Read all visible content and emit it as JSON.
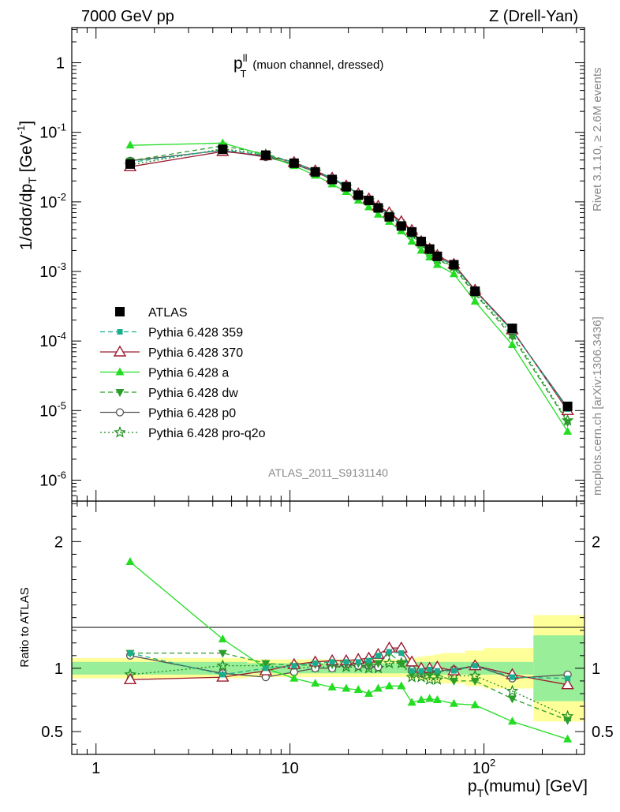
{
  "header": {
    "left": "7000 GeV pp",
    "right": "Z (Drell-Yan)"
  },
  "side_text": {
    "rivet": "Rivet 3.1.10, ≥ 2.6M events",
    "mcplots": "mcplots.cern.ch [arXiv:1306.3436]"
  },
  "chart_data": [
    {
      "type": "line",
      "panel": "main",
      "title_main": "p",
      "title_sup": "ll",
      "title_sub": "T",
      "title_rest": "(muon channel, dressed)",
      "ylabel": "1/σdσ/dp_T [GeV^-1]",
      "ylabel_parts": {
        "a": "1/σdσ/dp",
        "sub": "T",
        "b": "[GeV",
        "sup": "-1",
        "c": "]"
      },
      "xscale": "log",
      "yscale": "log",
      "xlim": [
        0.75,
        330
      ],
      "ylim": [
        5e-07,
        3.2
      ],
      "ytick_labels": [
        {
          "base": "10",
          "exp": "-6"
        },
        {
          "base": "10",
          "exp": "-5"
        },
        {
          "base": "10",
          "exp": "-4"
        },
        {
          "base": "10",
          "exp": "-3"
        },
        {
          "base": "10",
          "exp": "-2"
        },
        {
          "base": "10",
          "exp": "-1"
        },
        {
          "base": "1",
          "exp": ""
        }
      ],
      "watermark": "ATLAS_2011_S9131140",
      "x": [
        1.5,
        4.5,
        7.5,
        10.5,
        13.5,
        16.5,
        19.5,
        22.5,
        25.5,
        28.5,
        32.5,
        37.5,
        42.5,
        47.5,
        52.5,
        57.5,
        70,
        90,
        140,
        270
      ],
      "series": [
        {
          "name": "ATLAS",
          "style": "data",
          "color": "#000000",
          "values": [
            0.035,
            0.057,
            0.047,
            0.036,
            0.027,
            0.021,
            0.0165,
            0.0125,
            0.0105,
            0.0082,
            0.0061,
            0.0045,
            0.0037,
            0.0027,
            0.0021,
            0.00165,
            0.00125,
            0.00052,
            0.000152,
            1.15e-05
          ]
        },
        {
          "name": "Pythia 6.428 359",
          "style": "dashed",
          "marker": "square",
          "color": "#1aae8d",
          "values": [
            0.037,
            0.056,
            0.047,
            0.037,
            0.028,
            0.022,
            0.017,
            0.013,
            0.011,
            0.0085,
            0.0065,
            0.0048,
            0.0036,
            0.0026,
            0.0021,
            0.0016,
            0.00122,
            0.00053,
            0.00014,
            1.05e-05
          ]
        },
        {
          "name": "Pythia 6.428 370",
          "style": "solid",
          "marker": "triangle-open",
          "color": "#9b1c31",
          "values": [
            0.032,
            0.053,
            0.046,
            0.037,
            0.028,
            0.022,
            0.017,
            0.0131,
            0.0111,
            0.0087,
            0.007,
            0.0052,
            0.0039,
            0.0027,
            0.0021,
            0.0017,
            0.00127,
            0.00054,
            0.000145,
            1e-05
          ]
        },
        {
          "name": "Pythia 6.428 a",
          "style": "solid",
          "marker": "triangle",
          "color": "#22dd22",
          "values": [
            0.065,
            0.07,
            0.047,
            0.033,
            0.024,
            0.018,
            0.014,
            0.0105,
            0.0084,
            0.0066,
            0.0052,
            0.0038,
            0.0027,
            0.002,
            0.0016,
            0.00125,
            0.00092,
            0.00037,
            8.8e-05,
            5e-06
          ]
        },
        {
          "name": "Pythia 6.428 dw",
          "style": "dashed",
          "marker": "triangle-down",
          "color": "#2a9d2a",
          "values": [
            0.039,
            0.064,
            0.049,
            0.037,
            0.028,
            0.022,
            0.017,
            0.013,
            0.0108,
            0.0085,
            0.0068,
            0.0047,
            0.0035,
            0.0026,
            0.002,
            0.0015,
            0.00112,
            0.00047,
            0.000116,
            6.8e-06
          ]
        },
        {
          "name": "Pythia 6.428 p0",
          "style": "solid",
          "marker": "circle-open",
          "color": "#555555",
          "values": [
            0.039,
            0.055,
            0.044,
            0.035,
            0.027,
            0.021,
            0.017,
            0.0128,
            0.0107,
            0.0083,
            0.0068,
            0.0051,
            0.0037,
            0.0026,
            0.002,
            0.0016,
            0.00123,
            0.00053,
            0.00014,
            1.1e-05
          ]
        },
        {
          "name": "Pythia 6.428 pro-q2o",
          "style": "dotted",
          "marker": "star",
          "color": "#1a8a1a",
          "values": [
            0.034,
            0.058,
            0.048,
            0.036,
            0.027,
            0.021,
            0.0165,
            0.0126,
            0.0105,
            0.0082,
            0.0064,
            0.0047,
            0.0034,
            0.0025,
            0.0019,
            0.0015,
            0.00118,
            0.00049,
            0.000125,
            7.2e-06
          ]
        }
      ]
    },
    {
      "type": "line",
      "panel": "ratio",
      "ylabel": "Ratio to ATLAS",
      "xlabel": "p_T(mumu) [GeV]",
      "xlabel_parts": {
        "a": "p",
        "sub": "T",
        "b": "(mumu) [GeV]"
      },
      "xscale": "log",
      "xlim": [
        0.75,
        330
      ],
      "ylim": [
        0.32,
        2.32
      ],
      "yticks": [
        0.5,
        1,
        2
      ],
      "ytick_labels": [
        "0.5",
        "1",
        "2"
      ],
      "xticks": [
        1,
        10,
        100
      ],
      "xtick_labels": [
        {
          "base": "1",
          "exp": ""
        },
        {
          "base": "10",
          "exp": ""
        },
        {
          "base": "10",
          "exp": "2"
        }
      ],
      "bands": {
        "edges": [
          0.75,
          3,
          6,
          9,
          12,
          15,
          18,
          21,
          24,
          27,
          30,
          35,
          40,
          45,
          50,
          55,
          60,
          80,
          100,
          180,
          330
        ],
        "stat_half_width": [
          0.05,
          0.05,
          0.04,
          0.04,
          0.04,
          0.04,
          0.04,
          0.04,
          0.04,
          0.04,
          0.04,
          0.04,
          0.04,
          0.05,
          0.05,
          0.05,
          0.05,
          0.05,
          0.05,
          0.26
        ],
        "total_half_width": [
          0.08,
          0.08,
          0.07,
          0.07,
          0.07,
          0.07,
          0.07,
          0.07,
          0.07,
          0.07,
          0.07,
          0.07,
          0.08,
          0.09,
          0.1,
          0.11,
          0.12,
          0.14,
          0.16,
          0.42
        ],
        "stat_color": "#99ee99",
        "total_color": "#ffff99"
      },
      "x": [
        1.5,
        4.5,
        7.5,
        10.5,
        13.5,
        16.5,
        19.5,
        22.5,
        25.5,
        28.5,
        32.5,
        37.5,
        42.5,
        47.5,
        52.5,
        57.5,
        70,
        90,
        140,
        270
      ],
      "series": [
        {
          "name": "Pythia 6.428 359",
          "values": [
            1.12,
            0.95,
            1.0,
            1.02,
            1.04,
            1.05,
            1.05,
            1.05,
            1.06,
            1.1,
            1.13,
            1.12,
            0.98,
            0.98,
            0.99,
            0.98,
            0.98,
            1.02,
            0.93,
            0.92
          ]
        },
        {
          "name": "Pythia 6.428 370",
          "values": [
            0.91,
            0.93,
            0.98,
            1.03,
            1.05,
            1.06,
            1.06,
            1.07,
            1.08,
            1.11,
            1.16,
            1.16,
            1.05,
            1.0,
            1.0,
            1.01,
            0.98,
            1.02,
            0.95,
            0.87
          ]
        },
        {
          "name": "Pythia 6.428 a",
          "values": [
            1.84,
            1.23,
            1.0,
            0.92,
            0.88,
            0.85,
            0.84,
            0.83,
            0.8,
            0.84,
            0.86,
            0.86,
            0.73,
            0.75,
            0.76,
            0.75,
            0.72,
            0.71,
            0.58,
            0.44
          ]
        },
        {
          "name": "Pythia 6.428 dw",
          "values": [
            1.12,
            1.12,
            1.04,
            1.02,
            1.03,
            1.03,
            1.03,
            1.04,
            1.02,
            1.04,
            1.12,
            1.04,
            0.95,
            0.96,
            0.95,
            0.95,
            0.9,
            0.9,
            0.76,
            0.59
          ]
        },
        {
          "name": "Pythia 6.428 p0",
          "values": [
            1.1,
            0.96,
            0.93,
            0.97,
            1.0,
            1.0,
            1.03,
            1.02,
            1.02,
            1.01,
            1.15,
            1.14,
            0.99,
            0.96,
            0.97,
            0.98,
            0.99,
            1.02,
            0.92,
            0.95
          ]
        },
        {
          "name": "Pythia 6.428 pro-q2o",
          "values": [
            0.95,
            1.02,
            1.02,
            1.0,
            1.01,
            1.01,
            1.01,
            1.01,
            1.0,
            1.0,
            1.04,
            1.04,
            0.93,
            0.93,
            0.91,
            0.91,
            0.94,
            0.94,
            0.82,
            0.62
          ]
        }
      ]
    }
  ]
}
